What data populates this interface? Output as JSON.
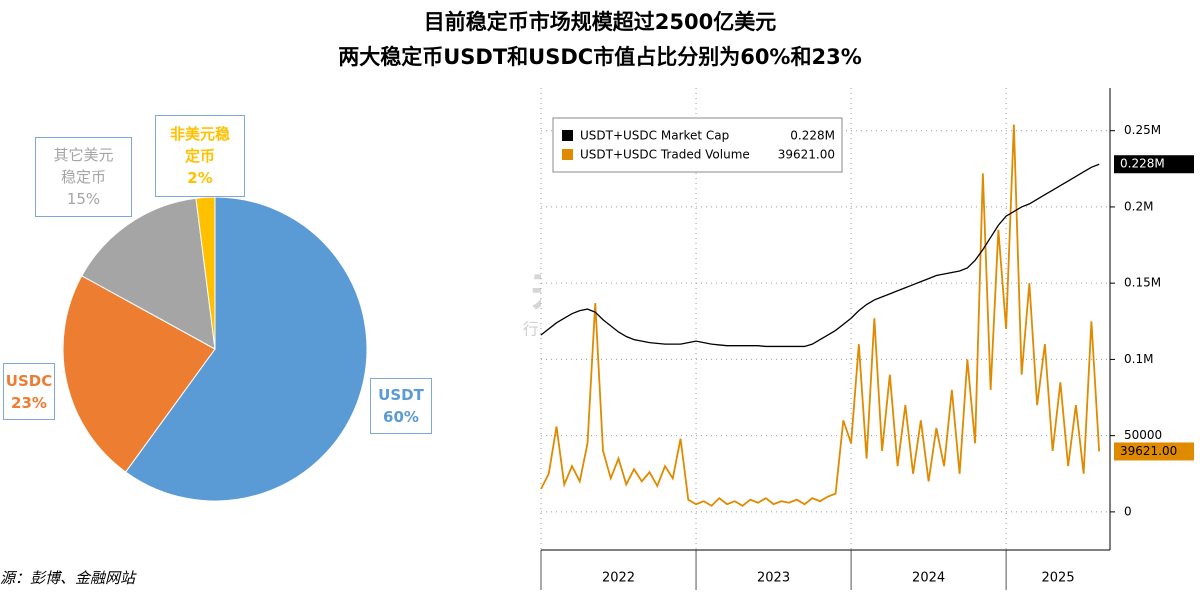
{
  "title": [
    "目前稳定币市场规模超过2500亿美元",
    "两大稳定币USDT和USDC市值占比分别为60%和23%"
  ],
  "source": "源：彭博、金融网站",
  "watermark": {
    "brand": "并购家",
    "site": "行业报告 IPOIPO.CN"
  },
  "chart_data": [
    {
      "type": "pie",
      "categories": [
        "USDT",
        "USDC",
        "其它美元稳定币",
        "非美元稳定币"
      ],
      "values": [
        60,
        23,
        15,
        2
      ],
      "value_labels": [
        "60%",
        "23%",
        "15%",
        "2%"
      ],
      "colors": [
        "#5b9bd5",
        "#ed7d31",
        "#a5a5a5",
        "#ffc000"
      ]
    },
    {
      "type": "line",
      "x": [
        2022.0,
        2022.05,
        2022.1,
        2022.15,
        2022.2,
        2022.25,
        2022.3,
        2022.35,
        2022.4,
        2022.45,
        2022.5,
        2022.55,
        2022.6,
        2022.65,
        2022.7,
        2022.75,
        2022.8,
        2022.85,
        2022.9,
        2022.95,
        2023.0,
        2023.05,
        2023.1,
        2023.15,
        2023.2,
        2023.25,
        2023.3,
        2023.35,
        2023.4,
        2023.45,
        2023.5,
        2023.55,
        2023.6,
        2023.65,
        2023.7,
        2023.75,
        2023.8,
        2023.85,
        2023.9,
        2023.95,
        2024.0,
        2024.05,
        2024.1,
        2024.15,
        2024.2,
        2024.25,
        2024.3,
        2024.35,
        2024.4,
        2024.45,
        2024.5,
        2024.55,
        2024.6,
        2024.65,
        2024.7,
        2024.75,
        2024.8,
        2024.85,
        2024.9,
        2024.95,
        2025.0,
        2025.05,
        2025.1,
        2025.15,
        2025.2,
        2025.25,
        2025.3,
        2025.35,
        2025.4,
        2025.45,
        2025.5,
        2025.55,
        2025.6
      ],
      "xlim": [
        2022,
        2025.67
      ],
      "xticks": [
        {
          "value": 2022,
          "label": "2022"
        },
        {
          "value": 2023,
          "label": "2023"
        },
        {
          "value": 2024,
          "label": "2024"
        },
        {
          "value": 2025,
          "label": "2025"
        }
      ],
      "ylim": [
        -25000,
        278000
      ],
      "yticks": [
        0,
        50000,
        {
          "value": 100000,
          "label": "0.1M"
        },
        {
          "value": 150000,
          "label": "0.15M"
        },
        {
          "value": 200000,
          "label": "0.2M"
        },
        {
          "value": 250000,
          "label": "0.25M"
        }
      ],
      "grid": true,
      "legend": "top-left",
      "series": [
        {
          "name": "USDT+USDC Market Cap",
          "color": "#000000",
          "values": [
            116000,
            120000,
            124000,
            127000,
            130000,
            132000,
            133000,
            131000,
            126000,
            122000,
            118000,
            115000,
            113000,
            112000,
            111000,
            110500,
            110000,
            110000,
            110000,
            111000,
            112000,
            111000,
            110000,
            109500,
            109000,
            109000,
            109000,
            109000,
            109000,
            108500,
            108500,
            108500,
            108500,
            108500,
            108500,
            110000,
            113000,
            116000,
            119000,
            123000,
            127000,
            132000,
            136000,
            139000,
            141000,
            143000,
            145000,
            147000,
            149000,
            151000,
            153000,
            155000,
            156000,
            157000,
            158000,
            160000,
            165000,
            172000,
            180000,
            188000,
            194000,
            197000,
            200000,
            202000,
            205000,
            208000,
            211000,
            214000,
            217000,
            220000,
            223000,
            226000,
            228000
          ],
          "value_labels": [
            null,
            null,
            null,
            null,
            null,
            null,
            null,
            null,
            null,
            null,
            null,
            null,
            null,
            null,
            null,
            null,
            null,
            null,
            null,
            null,
            null,
            null,
            null,
            null,
            null,
            null,
            null,
            null,
            null,
            null,
            null,
            null,
            null,
            null,
            null,
            null,
            null,
            null,
            null,
            null,
            null,
            null,
            null,
            null,
            null,
            null,
            null,
            null,
            null,
            null,
            null,
            null,
            null,
            null,
            null,
            null,
            null,
            null,
            null,
            null,
            null,
            null,
            null,
            null,
            null,
            null,
            null,
            null,
            null,
            null,
            null,
            null,
            "0.228M"
          ]
        },
        {
          "name": "USDT+USDC Traded Volume",
          "color": "#e08a00",
          "values": [
            15000,
            25000,
            56000,
            18000,
            30000,
            20000,
            45000,
            137000,
            40000,
            22000,
            35000,
            18000,
            28000,
            20000,
            26000,
            17000,
            30000,
            22000,
            48000,
            8000,
            5000,
            7000,
            4000,
            9000,
            5000,
            7000,
            4000,
            8000,
            6000,
            9000,
            5000,
            7000,
            6000,
            8000,
            5000,
            9000,
            7000,
            10000,
            12000,
            60000,
            45000,
            110000,
            35000,
            127000,
            40000,
            90000,
            30000,
            70000,
            25000,
            60000,
            20000,
            55000,
            30000,
            80000,
            25000,
            100000,
            45000,
            222000,
            80000,
            185000,
            120000,
            254000,
            90000,
            150000,
            70000,
            110000,
            40000,
            85000,
            30000,
            70000,
            25000,
            125000,
            39621
          ],
          "value_labels": [
            null,
            null,
            null,
            null,
            null,
            null,
            null,
            null,
            null,
            null,
            null,
            null,
            null,
            null,
            null,
            null,
            null,
            null,
            null,
            null,
            null,
            null,
            null,
            null,
            null,
            null,
            null,
            null,
            null,
            null,
            null,
            null,
            null,
            null,
            null,
            null,
            null,
            null,
            null,
            null,
            null,
            null,
            null,
            null,
            null,
            null,
            null,
            null,
            null,
            null,
            null,
            null,
            null,
            null,
            null,
            null,
            null,
            null,
            null,
            null,
            null,
            null,
            null,
            null,
            null,
            null,
            null,
            null,
            null,
            null,
            null,
            null,
            "39621.00"
          ]
        }
      ]
    }
  ]
}
